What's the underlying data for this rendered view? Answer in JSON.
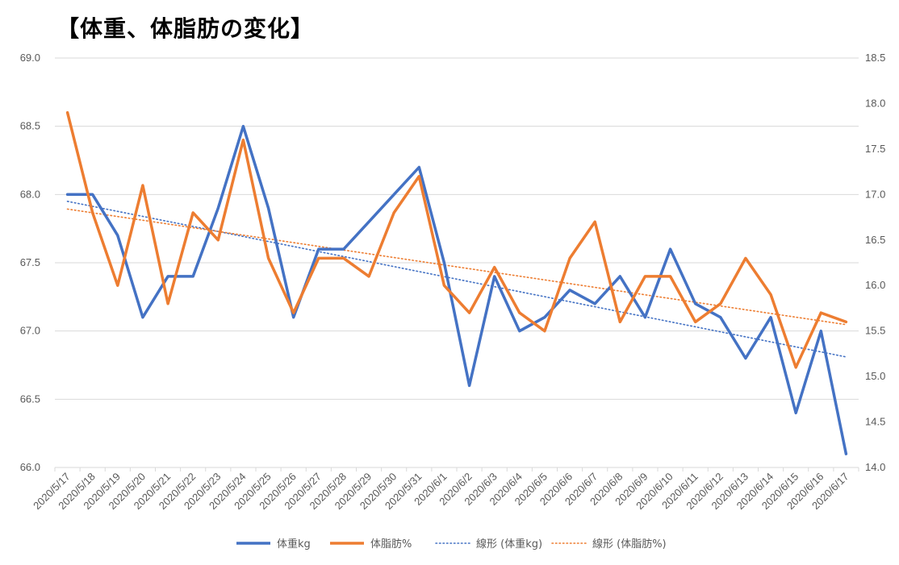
{
  "title": "【体重、体脂肪の変化】",
  "chart_data": {
    "type": "line",
    "title": "【体重、体脂肪の変化】",
    "categories": [
      "2020/5/17",
      "2020/5/18",
      "2020/5/19",
      "2020/5/20",
      "2020/5/21",
      "2020/5/22",
      "2020/5/23",
      "2020/5/24",
      "2020/5/25",
      "2020/5/26",
      "2020/5/27",
      "2020/5/28",
      "2020/5/29",
      "2020/5/30",
      "2020/5/31",
      "2020/6/1",
      "2020/6/2",
      "2020/6/3",
      "2020/6/4",
      "2020/6/5",
      "2020/6/6",
      "2020/6/7",
      "2020/6/8",
      "2020/6/9",
      "2020/6/10",
      "2020/6/11",
      "2020/6/12",
      "2020/6/13",
      "2020/6/14",
      "2020/6/15",
      "2020/6/16",
      "2020/6/17"
    ],
    "series": [
      {
        "name": "体重kg",
        "axis": "left",
        "color": "#4472C4",
        "values": [
          68.0,
          68.0,
          67.7,
          67.1,
          67.4,
          67.4,
          67.9,
          68.5,
          67.9,
          67.1,
          67.6,
          67.6,
          67.8,
          68.0,
          68.2,
          67.5,
          66.6,
          67.4,
          67.0,
          67.1,
          67.3,
          67.2,
          67.4,
          67.1,
          67.6,
          67.2,
          67.1,
          66.8,
          67.1,
          66.4,
          67.0,
          66.1
        ]
      },
      {
        "name": "体脂肪%",
        "axis": "right",
        "color": "#ED7D31",
        "values": [
          17.9,
          16.8,
          16.0,
          17.1,
          15.8,
          16.8,
          16.5,
          17.6,
          16.3,
          15.7,
          16.3,
          16.3,
          16.1,
          16.8,
          17.2,
          16.0,
          15.7,
          16.2,
          15.7,
          15.5,
          16.3,
          16.7,
          15.6,
          16.1,
          16.1,
          15.6,
          15.8,
          16.3,
          15.9,
          15.1,
          15.7,
          15.6
        ]
      }
    ],
    "trendlines": [
      {
        "name": "線形 (体重kg)",
        "of": "体重kg",
        "color": "#4472C4",
        "start": 67.95,
        "end": 66.81
      },
      {
        "name": "線形 (体脂肪%)",
        "of": "体脂肪%",
        "color": "#ED7D31",
        "start": 16.84,
        "end": 15.57
      }
    ],
    "y_left": {
      "min": 66.0,
      "max": 69.0,
      "step": 0.5,
      "ticks": [
        "66.0",
        "66.5",
        "67.0",
        "67.5",
        "68.0",
        "68.5",
        "69.0"
      ]
    },
    "y_right": {
      "min": 14.0,
      "max": 18.5,
      "step": 0.5,
      "ticks": [
        "14.0",
        "14.5",
        "15.0",
        "15.5",
        "16.0",
        "16.5",
        "17.0",
        "17.5",
        "18.0",
        "18.5"
      ]
    },
    "grid": true,
    "legend": "bottom",
    "legend_entries": [
      "体重kg",
      "体脂肪%",
      "線形 (体重kg)",
      "線形 (体脂肪%)"
    ],
    "gridline_color": "#D9D9D9"
  }
}
